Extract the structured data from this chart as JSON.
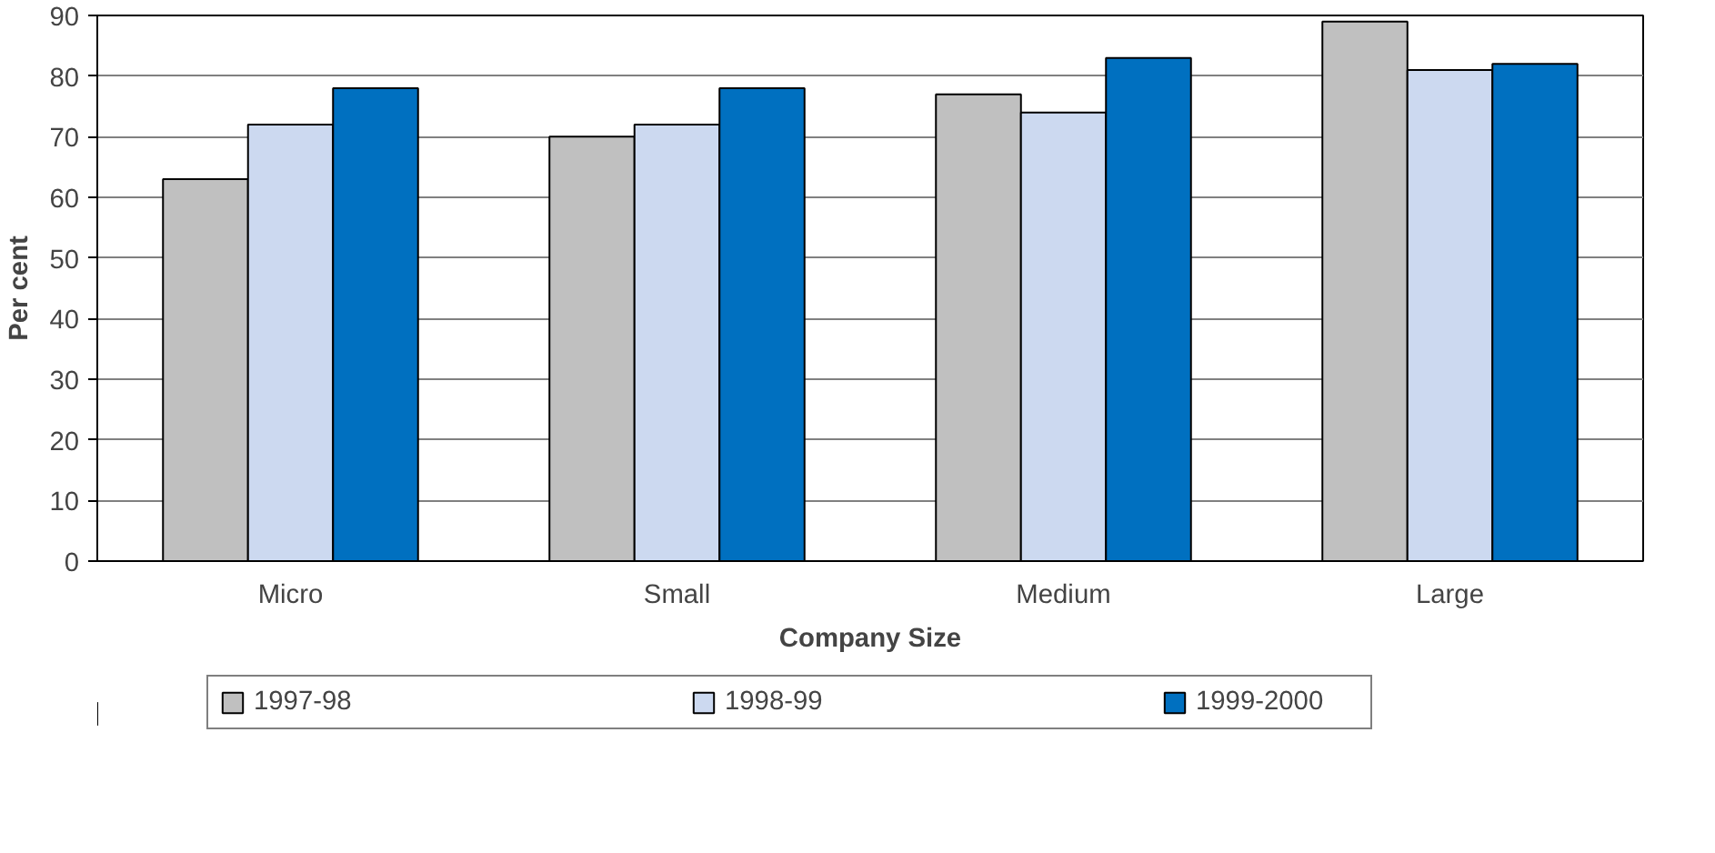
{
  "chart_data": {
    "type": "bar",
    "xlabel": "Company Size",
    "ylabel": "Per cent",
    "categories": [
      "Micro",
      "Small",
      "Medium",
      "Large"
    ],
    "series": [
      {
        "name": "1997-98",
        "color": "#c0c0c0",
        "values": [
          63,
          70,
          77,
          89
        ]
      },
      {
        "name": "1998-99",
        "color": "#ccd9f0",
        "values": [
          72,
          72,
          74,
          81
        ]
      },
      {
        "name": "1999-2000",
        "color": "#0070c0",
        "values": [
          78,
          78,
          83,
          82
        ]
      }
    ],
    "ylim": [
      0,
      90
    ],
    "yticks": [
      0,
      10,
      20,
      30,
      40,
      50,
      60,
      70,
      80,
      90
    ],
    "grid": "y",
    "legend": "bottom"
  }
}
